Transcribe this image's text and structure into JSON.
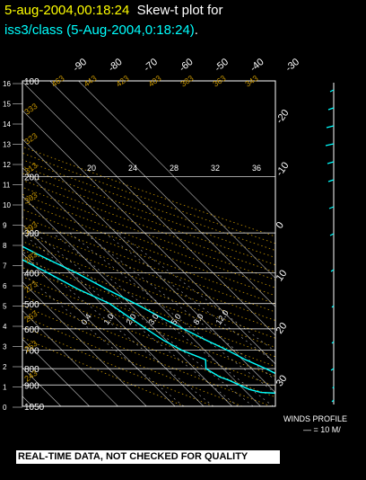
{
  "title": {
    "station_time": "5-aug-2004,00:18:24",
    "plot_label": "Skew-t plot for",
    "dataset": "iss3/class (5-Aug-2004,0:18:24)",
    "dataset_suffix": "."
  },
  "disclaimer": "REAL-TIME DATA, NOT CHECKED FOR QUALITY",
  "winds": {
    "label": "WINDS PROFILE",
    "scale": "— = 10 M/"
  },
  "colors": {
    "sounding": "#00ffff",
    "dry_adiabat": "#c89600",
    "isotherm": "#ffffff",
    "isobar": "#ffffff",
    "title_time": "#ffff00",
    "dataset": "#00ffff"
  },
  "chart_data": {
    "type": "skew-t",
    "pressure_axis": {
      "ylim": [
        1050,
        100
      ],
      "labels": [
        100,
        200,
        300,
        400,
        500,
        600,
        700,
        800,
        900,
        1050
      ]
    },
    "height_axis": {
      "labels": [
        16,
        15,
        14,
        13,
        12,
        11,
        10,
        9,
        8,
        7,
        6,
        5,
        4,
        3,
        2,
        1,
        0
      ]
    },
    "temperature_top_labels": [
      -90,
      -80,
      -70,
      -60,
      -50,
      -40,
      -30
    ],
    "temperature_right_labels": [
      -20,
      -10,
      0,
      10,
      20,
      30
    ],
    "mixing_ratio_labels": [
      "20",
      "24",
      "28",
      "32",
      "36"
    ],
    "mixing_ratio_low_labels": [
      "0.4",
      "1.0",
      "2.0",
      "3.0",
      "5.0",
      "8.0",
      "12.0"
    ],
    "dry_adiabat_labels": [
      "463",
      "443",
      "423",
      "403",
      "383",
      "363",
      "343",
      "333",
      "323",
      "313",
      "303",
      "293",
      "283",
      "273",
      "263",
      "253",
      "243"
    ],
    "series": [
      {
        "name": "temperature",
        "points": [
          [
            1000,
            32
          ],
          [
            970,
            29
          ],
          [
            950,
            27
          ],
          [
            900,
            22
          ],
          [
            850,
            18
          ],
          [
            800,
            15
          ],
          [
            750,
            11
          ],
          [
            700,
            8
          ],
          [
            650,
            4
          ],
          [
            600,
            0
          ],
          [
            550,
            -4
          ],
          [
            500,
            -8
          ],
          [
            450,
            -13
          ],
          [
            400,
            -18
          ],
          [
            350,
            -25
          ],
          [
            300,
            -32
          ],
          [
            270,
            -37
          ],
          [
            250,
            -41
          ],
          [
            220,
            -46
          ],
          [
            200,
            -51
          ],
          [
            180,
            -56
          ],
          [
            160,
            -60
          ],
          [
            150,
            -63
          ],
          [
            130,
            -68
          ],
          [
            120,
            -70
          ],
          [
            110,
            -72
          ],
          [
            100,
            -70
          ]
        ]
      },
      {
        "name": "dewpoint",
        "points": [
          [
            1000,
            20
          ],
          [
            980,
            18
          ],
          [
            960,
            15
          ],
          [
            950,
            5
          ],
          [
            930,
            2
          ],
          [
            900,
            0
          ],
          [
            870,
            -2
          ],
          [
            850,
            -4
          ],
          [
            800,
            -6
          ],
          [
            750,
            -3
          ],
          [
            700,
            -8
          ],
          [
            650,
            -11
          ],
          [
            600,
            -13
          ],
          [
            550,
            -15
          ],
          [
            500,
            -17
          ],
          [
            450,
            -23
          ],
          [
            400,
            -28
          ],
          [
            350,
            -34
          ],
          [
            300,
            -37
          ],
          [
            270,
            -40
          ],
          [
            250,
            -46
          ],
          [
            220,
            -52
          ],
          [
            200,
            -58
          ],
          [
            180,
            -63
          ],
          [
            160,
            -68
          ],
          [
            140,
            -73
          ],
          [
            120,
            -80
          ],
          [
            100,
            -74
          ]
        ]
      }
    ]
  }
}
